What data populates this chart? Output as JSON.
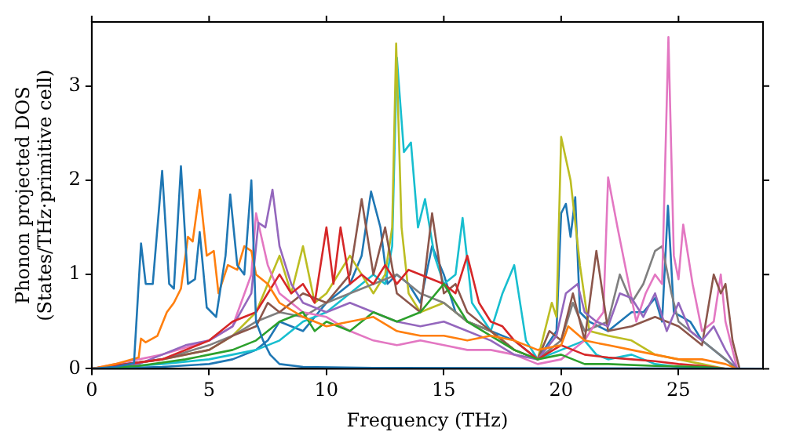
{
  "chart_data": {
    "type": "line",
    "xlabel": "Frequency (THz)",
    "ylabel": "Phonon projected DOS\n(States/THz·primitive cell)",
    "xlim": [
      0,
      28.6
    ],
    "ylim": [
      0,
      3.68
    ],
    "xticks": [
      0,
      5,
      10,
      15,
      20,
      25
    ],
    "yticks": [
      0,
      1,
      2,
      3
    ],
    "grid": false,
    "legend": false,
    "series": [
      {
        "color": "#1f77b4",
        "x": [
          0,
          1,
          1.8,
          2.1,
          2.3,
          2.6,
          3.0,
          3.3,
          3.5,
          3.8,
          4.1,
          4.4,
          4.6,
          4.9,
          5.3,
          5.7,
          5.9,
          6.2,
          6.5,
          6.8,
          7.0,
          7.3,
          7.6,
          8,
          9,
          12,
          28.6
        ],
        "values": [
          0,
          0.02,
          0.06,
          1.33,
          0.9,
          0.9,
          2.1,
          0.9,
          0.85,
          2.15,
          0.9,
          0.95,
          1.45,
          0.65,
          0.55,
          1.2,
          1.85,
          1.1,
          1.0,
          2.0,
          0.5,
          0.3,
          0.15,
          0.05,
          0.02,
          0.01,
          0
        ]
      },
      {
        "color": "#ff7f0e",
        "x": [
          0,
          1,
          2,
          2.1,
          2.3,
          2.8,
          3.2,
          3.5,
          3.8,
          4.1,
          4.3,
          4.6,
          4.9,
          5.2,
          5.4,
          5.8,
          6.2,
          6.5,
          6.8,
          7.0,
          7.5,
          8,
          9,
          10,
          11,
          12,
          13,
          14,
          15,
          16,
          17,
          18,
          19,
          20,
          20.3,
          21,
          22,
          23,
          24,
          25,
          26,
          27,
          27.5
        ],
        "values": [
          0,
          0.05,
          0.12,
          0.32,
          0.28,
          0.35,
          0.6,
          0.7,
          0.85,
          1.4,
          1.35,
          1.9,
          1.2,
          1.25,
          0.8,
          1.1,
          1.05,
          1.3,
          1.25,
          1.0,
          0.9,
          0.7,
          0.55,
          0.45,
          0.5,
          0.55,
          0.4,
          0.35,
          0.35,
          0.3,
          0.35,
          0.3,
          0.2,
          0.25,
          0.45,
          0.3,
          0.25,
          0.2,
          0.15,
          0.1,
          0.1,
          0.05,
          0
        ]
      },
      {
        "color": "#2ca02c",
        "x": [
          0,
          2,
          4,
          6,
          7,
          8,
          9,
          9.5,
          10,
          11,
          12,
          13,
          14,
          15,
          15.5,
          16,
          17,
          18,
          19,
          20,
          21,
          22,
          24,
          26,
          27
        ],
        "values": [
          0,
          0.03,
          0.1,
          0.2,
          0.3,
          0.5,
          0.6,
          0.4,
          0.5,
          0.4,
          0.6,
          0.5,
          0.6,
          0.9,
          0.7,
          0.5,
          0.35,
          0.2,
          0.1,
          0.15,
          0.05,
          0.05,
          0.03,
          0.02,
          0
        ]
      },
      {
        "color": "#d62728",
        "x": [
          0,
          3,
          5,
          6,
          7,
          7.5,
          8,
          8.5,
          9,
          9.5,
          10,
          10.3,
          10.6,
          11,
          11.5,
          12,
          12.5,
          13,
          13.5,
          14,
          15,
          15.5,
          16,
          16.5,
          17,
          17.5,
          18,
          19,
          20,
          21,
          22,
          23,
          24,
          25,
          26,
          27
        ],
        "values": [
          0,
          0.1,
          0.3,
          0.5,
          0.6,
          0.8,
          1.0,
          0.8,
          0.9,
          0.7,
          1.5,
          0.9,
          1.5,
          0.9,
          1.0,
          0.9,
          1.1,
          0.9,
          1.05,
          1.0,
          0.9,
          0.8,
          1.2,
          0.7,
          0.5,
          0.45,
          0.3,
          0.1,
          0.25,
          0.15,
          0.12,
          0.1,
          0.08,
          0.05,
          0.03,
          0
        ]
      },
      {
        "color": "#9467bd",
        "x": [
          0,
          2,
          3,
          4,
          5,
          6,
          6.8,
          7.1,
          7.4,
          7.7,
          8.0,
          8.5,
          9,
          10,
          11,
          12,
          13,
          14,
          15,
          16,
          17,
          18,
          19,
          19.8,
          20.2,
          20.7,
          21,
          21.5,
          22,
          22.5,
          23,
          23.5,
          24,
          24.5,
          25,
          25.5,
          26,
          26.5,
          27,
          27.5
        ],
        "values": [
          0,
          0.05,
          0.15,
          0.25,
          0.3,
          0.45,
          0.8,
          1.55,
          1.5,
          1.9,
          1.3,
          0.9,
          0.7,
          0.6,
          0.7,
          0.6,
          0.5,
          0.45,
          0.5,
          0.4,
          0.3,
          0.15,
          0.1,
          0.35,
          0.8,
          0.9,
          0.6,
          0.5,
          0.45,
          0.8,
          0.75,
          0.55,
          0.8,
          0.4,
          0.7,
          0.4,
          0.3,
          0.45,
          0.2,
          0
        ]
      },
      {
        "color": "#8c564b",
        "x": [
          0,
          3,
          5,
          6,
          7,
          7.5,
          8,
          9,
          10,
          11,
          11.5,
          12,
          12.5,
          13,
          14,
          14.5,
          15,
          15.5,
          16,
          17,
          18,
          19,
          19.5,
          20,
          20.5,
          21,
          21.5,
          22,
          23,
          24,
          24.5,
          25,
          26,
          26.5,
          26.8,
          27,
          27.3,
          27.6
        ],
        "values": [
          0,
          0.1,
          0.2,
          0.35,
          0.45,
          0.7,
          0.6,
          0.8,
          0.7,
          1.0,
          1.8,
          1.0,
          1.5,
          0.8,
          0.6,
          1.65,
          0.8,
          0.9,
          0.6,
          0.4,
          0.2,
          0.1,
          0.4,
          0.3,
          0.8,
          0.3,
          1.25,
          0.4,
          0.45,
          0.55,
          0.5,
          0.45,
          0.25,
          1.0,
          0.8,
          0.9,
          0.3,
          0
        ]
      },
      {
        "color": "#e377c2",
        "x": [
          0,
          3,
          5,
          6,
          6.8,
          7,
          7.5,
          8,
          9,
          10,
          11,
          12,
          13,
          14,
          15,
          16,
          17,
          18,
          19,
          20,
          20.5,
          21,
          21.5,
          21.8,
          22.0,
          22.4,
          22.8,
          23.2,
          23.6,
          24,
          24.3,
          24.57,
          24.8,
          25.0,
          25.2,
          25.6,
          26,
          26.5,
          26.8,
          27,
          27.5
        ],
        "values": [
          0,
          0.15,
          0.3,
          0.45,
          1.0,
          1.65,
          1.1,
          0.8,
          0.6,
          0.55,
          0.4,
          0.3,
          0.25,
          0.3,
          0.25,
          0.2,
          0.2,
          0.15,
          0.05,
          0.1,
          0.2,
          0.3,
          0.5,
          0.6,
          2.03,
          1.5,
          1.0,
          0.5,
          0.8,
          1.0,
          0.9,
          3.52,
          1.2,
          0.95,
          1.53,
          0.9,
          0.4,
          0.5,
          1.0,
          0.5,
          0
        ]
      },
      {
        "color": "#7f7f7f",
        "x": [
          0,
          3,
          5,
          6,
          7,
          8,
          9,
          10,
          11,
          12,
          13,
          14,
          15,
          16,
          17,
          18,
          19,
          20,
          20.5,
          21,
          22,
          22.5,
          23,
          23.5,
          24,
          24.3,
          24.7,
          25,
          25.5,
          26,
          26.5,
          27,
          27.5
        ],
        "values": [
          0,
          0.1,
          0.25,
          0.35,
          0.5,
          0.6,
          0.55,
          0.7,
          0.8,
          0.9,
          1.0,
          0.8,
          0.7,
          0.5,
          0.4,
          0.2,
          0.1,
          0.3,
          0.7,
          0.4,
          0.5,
          1.0,
          0.7,
          0.9,
          1.25,
          1.3,
          0.8,
          0.5,
          0.4,
          0.3,
          0.2,
          0.1,
          0
        ]
      },
      {
        "color": "#bcbd22",
        "x": [
          0,
          3,
          5,
          6,
          7,
          7.5,
          8,
          8.5,
          9,
          9.5,
          10,
          11,
          12,
          12.5,
          12.8,
          12.97,
          13.2,
          13.5,
          14,
          15,
          16,
          17,
          18,
          19,
          19.6,
          19.8,
          20.0,
          20.4,
          20.8,
          21.2,
          22,
          23,
          24,
          25,
          26,
          27
        ],
        "values": [
          0,
          0.1,
          0.2,
          0.35,
          0.6,
          0.9,
          1.2,
          0.8,
          1.3,
          0.7,
          0.8,
          1.2,
          0.8,
          1.0,
          1.5,
          3.45,
          1.5,
          0.8,
          0.6,
          0.7,
          0.5,
          0.4,
          0.2,
          0.1,
          0.7,
          0.55,
          2.46,
          2.0,
          1.1,
          0.4,
          0.35,
          0.3,
          0.15,
          0.1,
          0.05,
          0
        ]
      },
      {
        "color": "#17becf",
        "x": [
          0,
          3,
          5,
          6,
          7,
          8,
          9,
          10,
          11,
          12,
          12.5,
          12.8,
          13.0,
          13.3,
          13.6,
          13.9,
          14.2,
          14.6,
          15,
          15.5,
          15.8,
          16.2,
          17,
          17.5,
          18,
          18.5,
          19,
          20,
          21,
          21.5,
          22,
          23,
          24,
          25,
          26,
          28.6
        ],
        "values": [
          0,
          0.05,
          0.1,
          0.15,
          0.2,
          0.3,
          0.5,
          0.6,
          0.8,
          1.0,
          0.9,
          1.3,
          3.3,
          2.3,
          2.4,
          1.5,
          1.8,
          1.2,
          0.9,
          1.0,
          1.6,
          0.7,
          0.4,
          0.8,
          1.1,
          0.3,
          0.1,
          0.2,
          0.3,
          0.15,
          0.1,
          0.15,
          0.05,
          0.02,
          0,
          0
        ]
      },
      {
        "color": "#1f77b4",
        "x": [
          0,
          3,
          5,
          6,
          7,
          7.5,
          8,
          9,
          10,
          11,
          11.5,
          11.9,
          12.3,
          12.6,
          13.0,
          13.5,
          14,
          14.5,
          15,
          15.5,
          16,
          17,
          18,
          18.5,
          19,
          19.8,
          20.0,
          20.2,
          20.4,
          20.6,
          20.8,
          21.2,
          22,
          23,
          23.5,
          24,
          24.3,
          24.55,
          24.8,
          25.5,
          26,
          27,
          27.5
        ],
        "values": [
          0,
          0.02,
          0.05,
          0.1,
          0.2,
          0.3,
          0.5,
          0.4,
          0.7,
          0.9,
          1.2,
          1.88,
          1.5,
          0.9,
          1.0,
          0.9,
          0.7,
          1.3,
          1.0,
          0.6,
          0.5,
          0.4,
          0.3,
          0.2,
          0.1,
          0.4,
          1.65,
          1.75,
          1.4,
          1.82,
          0.6,
          0.5,
          0.4,
          0.6,
          0.6,
          0.75,
          0.5,
          1.73,
          0.6,
          0.5,
          0.3,
          0.1,
          0
        ]
      }
    ]
  }
}
